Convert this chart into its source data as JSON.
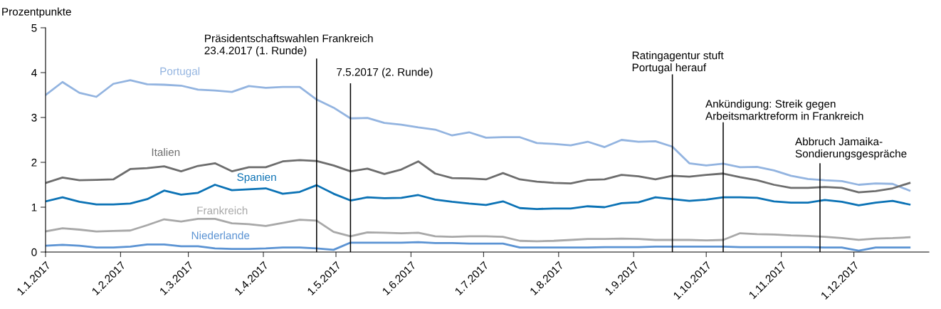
{
  "chart_data": {
    "type": "line",
    "ylabel": "Prozentpunkte",
    "x": [
      "2017-01-01",
      "2017-01-08",
      "2017-01-15",
      "2017-01-22",
      "2017-01-29",
      "2017-02-05",
      "2017-02-12",
      "2017-02-19",
      "2017-02-26",
      "2017-03-05",
      "2017-03-12",
      "2017-03-19",
      "2017-03-26",
      "2017-04-02",
      "2017-04-09",
      "2017-04-16",
      "2017-04-23",
      "2017-04-30",
      "2017-05-07",
      "2017-05-14",
      "2017-05-21",
      "2017-05-28",
      "2017-06-04",
      "2017-06-11",
      "2017-06-18",
      "2017-06-25",
      "2017-07-02",
      "2017-07-09",
      "2017-07-16",
      "2017-07-23",
      "2017-07-30",
      "2017-08-06",
      "2017-08-13",
      "2017-08-20",
      "2017-08-27",
      "2017-09-03",
      "2017-09-10",
      "2017-09-17",
      "2017-09-24",
      "2017-10-01",
      "2017-10-08",
      "2017-10-15",
      "2017-10-22",
      "2017-10-29",
      "2017-11-05",
      "2017-11-12",
      "2017-11-19",
      "2017-11-26",
      "2017-12-03",
      "2017-12-10",
      "2017-12-17",
      "2017-12-24"
    ],
    "series": [
      {
        "name": "Portugal",
        "color": "#93b4e0",
        "values": [
          3.5,
          3.79,
          3.55,
          3.46,
          3.75,
          3.83,
          3.74,
          3.73,
          3.71,
          3.62,
          3.6,
          3.57,
          3.7,
          3.66,
          3.68,
          3.68,
          3.4,
          3.22,
          2.98,
          2.99,
          2.88,
          2.84,
          2.78,
          2.73,
          2.6,
          2.67,
          2.55,
          2.56,
          2.56,
          2.43,
          2.41,
          2.38,
          2.46,
          2.34,
          2.5,
          2.46,
          2.47,
          2.35,
          1.98,
          1.93,
          1.97,
          1.89,
          1.9,
          1.82,
          1.7,
          1.63,
          1.6,
          1.58,
          1.5,
          1.53,
          1.52,
          1.37
        ]
      },
      {
        "name": "Italien",
        "color": "#6d6d6d",
        "values": [
          1.54,
          1.66,
          1.6,
          1.61,
          1.62,
          1.85,
          1.87,
          1.91,
          1.8,
          1.92,
          1.98,
          1.8,
          1.89,
          1.89,
          2.02,
          2.05,
          2.03,
          1.93,
          1.8,
          1.86,
          1.74,
          1.84,
          2.02,
          1.75,
          1.65,
          1.64,
          1.62,
          1.76,
          1.62,
          1.57,
          1.54,
          1.53,
          1.61,
          1.62,
          1.72,
          1.69,
          1.62,
          1.7,
          1.68,
          1.72,
          1.75,
          1.67,
          1.6,
          1.5,
          1.43,
          1.43,
          1.45,
          1.43,
          1.33,
          1.36,
          1.42,
          1.54
        ]
      },
      {
        "name": "Spanien",
        "color": "#0b72b5",
        "values": [
          1.13,
          1.22,
          1.12,
          1.06,
          1.06,
          1.08,
          1.18,
          1.37,
          1.28,
          1.32,
          1.5,
          1.38,
          1.4,
          1.42,
          1.3,
          1.34,
          1.49,
          1.3,
          1.15,
          1.22,
          1.2,
          1.21,
          1.27,
          1.17,
          1.12,
          1.08,
          1.05,
          1.13,
          0.98,
          0.96,
          0.97,
          0.97,
          1.02,
          1.0,
          1.09,
          1.11,
          1.22,
          1.18,
          1.14,
          1.17,
          1.22,
          1.22,
          1.21,
          1.13,
          1.1,
          1.1,
          1.16,
          1.12,
          1.04,
          1.1,
          1.14,
          1.06
        ]
      },
      {
        "name": "Frankreich",
        "color": "#a8a8a8",
        "values": [
          0.46,
          0.53,
          0.5,
          0.46,
          0.47,
          0.48,
          0.6,
          0.73,
          0.68,
          0.74,
          0.74,
          0.64,
          0.62,
          0.58,
          0.65,
          0.72,
          0.7,
          0.45,
          0.35,
          0.44,
          0.43,
          0.42,
          0.43,
          0.35,
          0.34,
          0.35,
          0.35,
          0.34,
          0.25,
          0.24,
          0.25,
          0.27,
          0.29,
          0.29,
          0.3,
          0.29,
          0.27,
          0.27,
          0.27,
          0.26,
          0.27,
          0.42,
          0.4,
          0.39,
          0.37,
          0.36,
          0.34,
          0.31,
          0.27,
          0.3,
          0.31,
          0.33
        ]
      },
      {
        "name": "Niederlande",
        "color": "#5b93d3",
        "values": [
          0.14,
          0.16,
          0.14,
          0.1,
          0.1,
          0.12,
          0.17,
          0.17,
          0.13,
          0.13,
          0.08,
          0.07,
          0.07,
          0.08,
          0.1,
          0.1,
          0.08,
          0.05,
          0.21,
          0.21,
          0.21,
          0.21,
          0.22,
          0.2,
          0.2,
          0.19,
          0.19,
          0.19,
          0.1,
          0.1,
          0.1,
          0.1,
          0.1,
          0.11,
          0.11,
          0.11,
          0.12,
          0.12,
          0.12,
          0.12,
          0.12,
          0.11,
          0.11,
          0.11,
          0.11,
          0.11,
          0.1,
          0.1,
          0.03,
          0.1,
          0.1,
          0.1
        ]
      }
    ],
    "xlim": [
      "2017-01-01",
      "2018-01-01"
    ],
    "xticks": [
      {
        "value": "2017-01-01",
        "label": "1.1.2017"
      },
      {
        "value": "2017-02-01",
        "label": "1.2.2017"
      },
      {
        "value": "2017-03-01",
        "label": "1.3.2017"
      },
      {
        "value": "2017-04-01",
        "label": "1.4.2017"
      },
      {
        "value": "2017-05-01",
        "label": "1.5.2017"
      },
      {
        "value": "2017-06-01",
        "label": "1.6.2017"
      },
      {
        "value": "2017-07-01",
        "label": "1.7.2017"
      },
      {
        "value": "2017-08-01",
        "label": "1.8.2017"
      },
      {
        "value": "2017-09-01",
        "label": "1.9.2017"
      },
      {
        "value": "2017-10-01",
        "label": "1.10.2017"
      },
      {
        "value": "2017-11-01",
        "label": "1.11.2017"
      },
      {
        "value": "2017-12-01",
        "label": "1.12.2017"
      }
    ],
    "ylim": [
      0,
      5
    ],
    "yticks": [
      0,
      1,
      2,
      3,
      4,
      5
    ],
    "grid": false,
    "ref_lines": [
      {
        "axis": "x",
        "value": "2017-04-23",
        "label": "Präsidentschaftswahlen Frankreich\n23.4.2017 (1. Runde)"
      },
      {
        "axis": "x",
        "value": "2017-05-07",
        "label": "7.5.2017 (2. Runde)"
      },
      {
        "axis": "x",
        "value": "2017-09-17",
        "label": "Ratingagentur stuft\nPortugal herauf"
      },
      {
        "axis": "x",
        "value": "2017-10-08",
        "label": "Ankündigung: Streik gegen\nArbeitsmarktreform in Frankreich"
      },
      {
        "axis": "x",
        "value": "2017-11-17",
        "label": "Abbruch Jamaika-\nSondierungsgespräche"
      }
    ]
  }
}
